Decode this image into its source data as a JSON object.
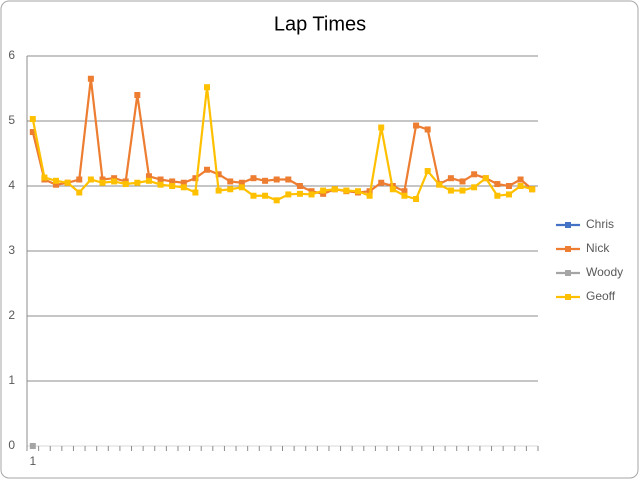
{
  "chart_data": {
    "type": "line",
    "title": "Lap Times",
    "categories": [
      "1",
      null,
      null,
      null,
      null,
      null,
      null,
      null,
      null,
      null,
      null,
      null,
      null,
      null,
      null,
      null,
      null,
      null,
      null,
      null,
      null,
      null,
      null,
      null,
      null,
      null,
      null,
      null,
      null,
      null,
      null,
      null,
      null,
      null,
      null,
      null,
      null,
      null,
      null,
      null,
      null,
      null,
      null,
      null
    ],
    "series": [
      {
        "name": "Chris",
        "color": "#4472c4",
        "values": [
          null,
          null,
          null,
          null,
          null,
          null,
          null,
          null,
          null,
          null,
          null,
          null,
          null,
          null,
          null,
          null,
          null,
          null,
          null,
          null,
          null,
          null,
          null,
          null,
          null,
          null,
          null,
          null,
          null,
          null,
          null,
          null,
          null,
          null,
          null,
          null,
          null,
          null,
          null,
          null,
          null,
          null,
          null,
          null
        ]
      },
      {
        "name": "Nick",
        "color": "#ed7d31",
        "values": [
          4.83,
          4.1,
          4.02,
          4.05,
          4.1,
          5.65,
          4.1,
          4.12,
          4.07,
          5.4,
          4.15,
          4.1,
          4.07,
          4.05,
          4.12,
          4.25,
          4.18,
          4.07,
          4.05,
          4.12,
          4.08,
          4.1,
          4.1,
          4.0,
          3.92,
          3.88,
          3.95,
          3.92,
          3.9,
          3.92,
          4.05,
          4.0,
          3.92,
          4.93,
          4.87,
          4.03,
          4.12,
          4.07,
          4.18,
          4.12,
          4.03,
          4.0,
          4.1,
          3.95
        ]
      },
      {
        "name": "Woody",
        "color": "#a5a5a5",
        "values": [
          0,
          null,
          null,
          null,
          null,
          null,
          null,
          null,
          null,
          null,
          null,
          null,
          null,
          null,
          null,
          null,
          null,
          null,
          null,
          null,
          null,
          null,
          null,
          null,
          null,
          null,
          null,
          null,
          null,
          null,
          null,
          null,
          null,
          null,
          null,
          null,
          null,
          null,
          null,
          null,
          null,
          null,
          null,
          null
        ]
      },
      {
        "name": "Geoff",
        "color": "#ffc000",
        "values": [
          5.03,
          4.13,
          4.08,
          4.05,
          3.9,
          4.1,
          4.05,
          4.07,
          4.03,
          4.05,
          4.08,
          4.02,
          4.0,
          3.98,
          3.9,
          5.52,
          3.93,
          3.95,
          3.98,
          3.85,
          3.85,
          3.78,
          3.87,
          3.88,
          3.87,
          3.93,
          3.95,
          3.93,
          3.92,
          3.85,
          4.9,
          3.95,
          3.85,
          3.8,
          4.23,
          4.02,
          3.93,
          3.93,
          3.98,
          4.12,
          3.85,
          3.87,
          4.0,
          3.95
        ]
      }
    ],
    "ylim": [
      0,
      6
    ],
    "yticks": [
      0,
      1,
      2,
      3,
      4,
      5,
      6
    ],
    "grid": true,
    "legend": "right"
  }
}
